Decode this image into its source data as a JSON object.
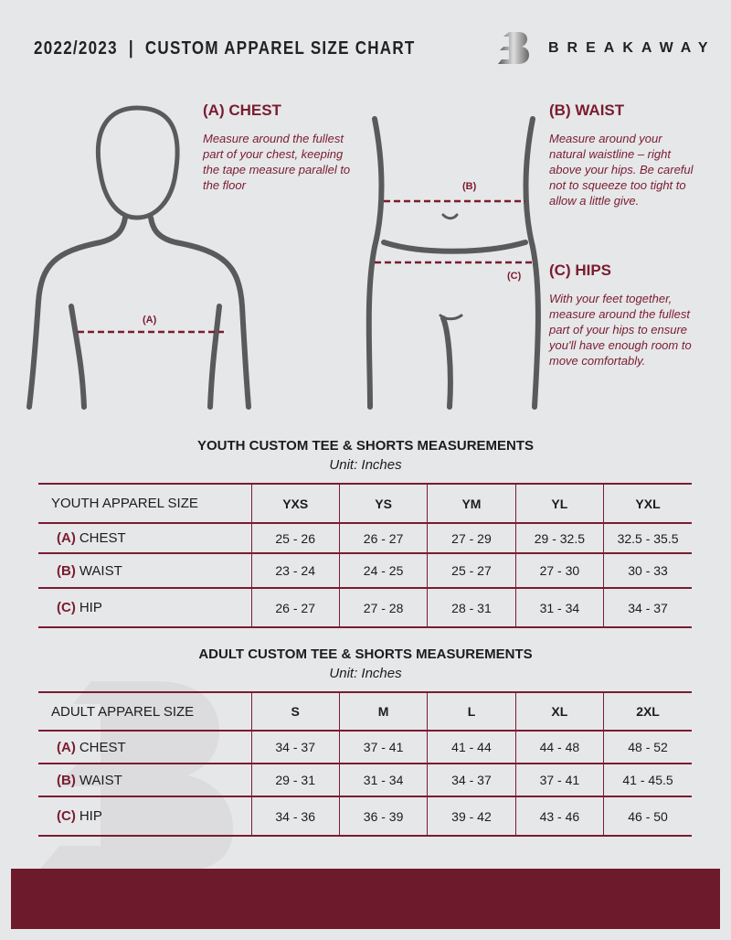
{
  "header": {
    "title": "2022/2023  |  CUSTOM APPAREL SIZE CHART",
    "brand": "BREAKAWAY",
    "logo_letter": "B"
  },
  "colors": {
    "accent": "#7a1c30",
    "background": "#e6e7e9",
    "footer": "#6e1a2d"
  },
  "chest": {
    "heading": "(A) CHEST",
    "text": "Measure around the fullest part of your chest, keeping the tape measure parallel to the floor",
    "marker": "(A)"
  },
  "waist": {
    "heading": "(B) WAIST",
    "text": "Measure around your natural waistline – right above your hips. Be careful not to squeeze too tight to allow a little give.",
    "marker": "(B)"
  },
  "hips": {
    "heading": "(C) HIPS",
    "text": "With your feet together, measure around the fullest part of your hips to ensure you'll have enough room to move comfortably.",
    "marker": "(C)"
  },
  "youth": {
    "title": "YOUTH CUSTOM TEE & SHORTS MEASUREMENTS",
    "unit": "Unit: Inches",
    "header": "YOUTH APPAREL SIZE",
    "sizes": [
      "YXS",
      "YS",
      "YM",
      "YL",
      "YXL"
    ],
    "rows": [
      {
        "letter": "(A)",
        "name": "CHEST",
        "values": [
          "25 - 26",
          "26 - 27",
          "27 - 29",
          "29 - 32.5",
          "32.5 - 35.5"
        ]
      },
      {
        "letter": "(B)",
        "name": "WAIST",
        "values": [
          "23 - 24",
          "24 - 25",
          "25 - 27",
          "27 - 30",
          "30 - 33"
        ]
      },
      {
        "letter": "(C)",
        "name": "HIP",
        "values": [
          "26 - 27",
          "27 - 28",
          "28 - 31",
          "31 - 34",
          "34 - 37"
        ]
      }
    ]
  },
  "adult": {
    "title": "ADULT CUSTOM TEE & SHORTS MEASUREMENTS",
    "unit": "Unit: Inches",
    "header": "ADULT APPAREL SIZE",
    "sizes": [
      "S",
      "M",
      "L",
      "XL",
      "2XL"
    ],
    "rows": [
      {
        "letter": "(A)",
        "name": "CHEST",
        "values": [
          "34 - 37",
          "37 - 41",
          "41 - 44",
          "44 - 48",
          "48 - 52"
        ]
      },
      {
        "letter": "(B)",
        "name": "WAIST",
        "values": [
          "29 - 31",
          "31 - 34",
          "34 - 37",
          "37 - 41",
          "41 - 45.5"
        ]
      },
      {
        "letter": "(C)",
        "name": "HIP",
        "values": [
          "34 - 36",
          "36 - 39",
          "39 - 42",
          "43 - 46",
          "46 - 50"
        ]
      }
    ]
  }
}
